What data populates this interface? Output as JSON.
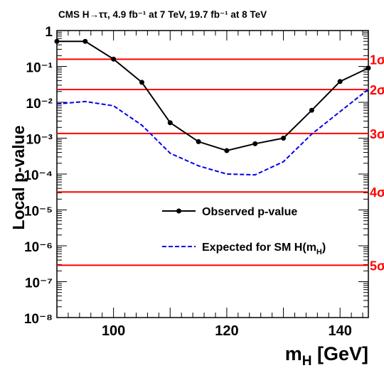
{
  "chart_data": {
    "type": "line",
    "title": "CMS H→ττ, 4.9 fb⁻¹ at 7 TeV, 19.7 fb⁻¹ at 8 TeV",
    "xlabel": "m_H [GeV]",
    "ylabel": "Local p-value",
    "xlim": [
      90,
      145
    ],
    "ylim": [
      1e-08,
      1
    ],
    "y_scale": "log",
    "x_ticks": [
      100,
      120,
      140
    ],
    "y_ticks": [
      {
        "value": 1,
        "label": "1"
      },
      {
        "value": 0.1,
        "label": "10⁻¹"
      },
      {
        "value": 0.01,
        "label": "10⁻²"
      },
      {
        "value": 0.001,
        "label": "10⁻³"
      },
      {
        "value": 0.0001,
        "label": "10⁻⁴"
      },
      {
        "value": 1e-05,
        "label": "10⁻⁵"
      },
      {
        "value": 1e-06,
        "label": "10⁻⁶"
      },
      {
        "value": 1e-07,
        "label": "10⁻⁷"
      },
      {
        "value": 1e-08,
        "label": "10⁻⁸"
      }
    ],
    "series": [
      {
        "name": "Observed p-value",
        "style": "solid-with-markers",
        "color": "#000000",
        "x": [
          90,
          95,
          100,
          105,
          110,
          115,
          120,
          125,
          130,
          135,
          140,
          145
        ],
        "y": [
          0.5,
          0.5,
          0.16,
          0.036,
          0.0027,
          0.0008,
          0.00045,
          0.0007,
          0.001,
          0.006,
          0.038,
          0.09
        ]
      },
      {
        "name": "Expected for SM H(m_H)",
        "style": "dashed",
        "color": "#0000ee",
        "x": [
          90,
          95,
          100,
          105,
          110,
          115,
          120,
          125,
          130,
          135,
          140,
          145
        ],
        "y": [
          0.009,
          0.0105,
          0.008,
          0.0023,
          0.00038,
          0.00017,
          0.0001,
          9.5e-05,
          0.00022,
          0.0013,
          0.0055,
          0.023
        ]
      }
    ],
    "sigma_lines": [
      {
        "label": "1σ",
        "p": 0.1587
      },
      {
        "label": "2σ",
        "p": 0.02275
      },
      {
        "label": "3σ",
        "p": 0.00135
      },
      {
        "label": "4σ",
        "p": 3.17e-05
      },
      {
        "label": "5σ",
        "p": 2.87e-07
      }
    ],
    "sigma_color": "#ff0000",
    "legend_position": "center-right",
    "grid": false
  }
}
